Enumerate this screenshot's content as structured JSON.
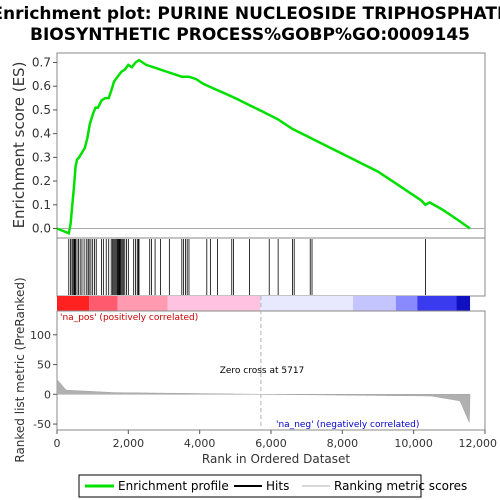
{
  "chart_data": {
    "type": "line",
    "title_lines": [
      "Enrichment plot: PURINE NUCLEOSIDE TRIPHOSPHATE",
      "BIOSYNTHETIC PROCESS%GOBP%GO:0009145"
    ],
    "ylabel": "Enrichment score (ES)",
    "ylabel_bottom": "Ranked list metric (PreRanked)",
    "xlabel": "Rank in Ordered Dataset",
    "x_ticks": [
      0,
      2000,
      4000,
      6000,
      8000,
      10000,
      12000
    ],
    "x_tick_labels": [
      "0",
      "2,000",
      "4,000",
      "6,000",
      "8,000",
      "10,000",
      "12,000"
    ],
    "es_y_ticks": [
      0.0,
      0.1,
      0.2,
      0.3,
      0.4,
      0.5,
      0.6,
      0.7
    ],
    "es_y_tick_labels": [
      "0.0",
      "0.1",
      "0.2",
      "0.3",
      "0.4",
      "0.5",
      "0.6",
      "0.7"
    ],
    "metric_y_ticks": [
      -50,
      0,
      50,
      100
    ],
    "metric_y_tick_labels": [
      "-50",
      "0",
      "50",
      "100"
    ],
    "xlim": [
      0,
      12000
    ],
    "es_ylim": [
      -0.04,
      0.74
    ],
    "metric_ylim": [
      -60,
      140
    ],
    "enrichment_profile": {
      "name": "Enrichment profile",
      "color": "#00e000",
      "x": [
        0,
        330,
        380,
        430,
        480,
        520,
        560,
        620,
        700,
        780,
        850,
        920,
        1000,
        1080,
        1150,
        1250,
        1350,
        1450,
        1520,
        1600,
        1700,
        1800,
        1900,
        2000,
        2100,
        2200,
        2300,
        2400,
        2500,
        2700,
        2900,
        3100,
        3300,
        3500,
        3700,
        3900,
        4100,
        4400,
        4700,
        5000,
        5400,
        5800,
        6200,
        6600,
        7000,
        7400,
        7800,
        8200,
        8600,
        9000,
        9400,
        9800,
        10200,
        10330,
        10450,
        10800,
        11200,
        11580
      ],
      "y": [
        0.0,
        -0.02,
        0.02,
        0.1,
        0.18,
        0.26,
        0.29,
        0.3,
        0.32,
        0.34,
        0.38,
        0.44,
        0.48,
        0.51,
        0.51,
        0.54,
        0.55,
        0.55,
        0.58,
        0.62,
        0.64,
        0.66,
        0.67,
        0.69,
        0.68,
        0.7,
        0.71,
        0.7,
        0.69,
        0.68,
        0.67,
        0.66,
        0.65,
        0.64,
        0.64,
        0.63,
        0.61,
        0.59,
        0.57,
        0.55,
        0.52,
        0.49,
        0.46,
        0.42,
        0.39,
        0.36,
        0.33,
        0.3,
        0.27,
        0.24,
        0.2,
        0.16,
        0.12,
        0.1,
        0.11,
        0.08,
        0.04,
        0.0
      ]
    },
    "hits": [
      330,
      380,
      420,
      450,
      480,
      500,
      520,
      560,
      600,
      650,
      700,
      760,
      820,
      870,
      900,
      950,
      1000,
      1050,
      1100,
      1250,
      1300,
      1380,
      1450,
      1520,
      1560,
      1590,
      1620,
      1650,
      1680,
      1700,
      1720,
      1740,
      1760,
      1780,
      1800,
      1830,
      1860,
      1900,
      1950,
      2000,
      2150,
      2200,
      2250,
      2280,
      2300,
      2600,
      2650,
      2750,
      2900,
      3150,
      3500,
      3550,
      3600,
      3650,
      3700,
      4200,
      4300,
      4500,
      4900,
      4950,
      5400,
      5950,
      6200,
      6600,
      6650,
      7100,
      7150,
      10330
    ],
    "zero_cross": 5717,
    "zero_cross_label": "Zero cross at 5717",
    "pos_label": "'na_pos' (positively correlated)",
    "neg_label": "'na_neg' (negatively correlated)",
    "legend": [
      "Enrichment profile",
      "Hits",
      "Ranking metric scores"
    ],
    "colors": {
      "profile": "#00e000",
      "hits": "#000000",
      "metric": "#b0b0b0",
      "pos_label": "#cc0000",
      "neg_label": "#0000cc",
      "zero_line": "#b0b0b0"
    }
  }
}
